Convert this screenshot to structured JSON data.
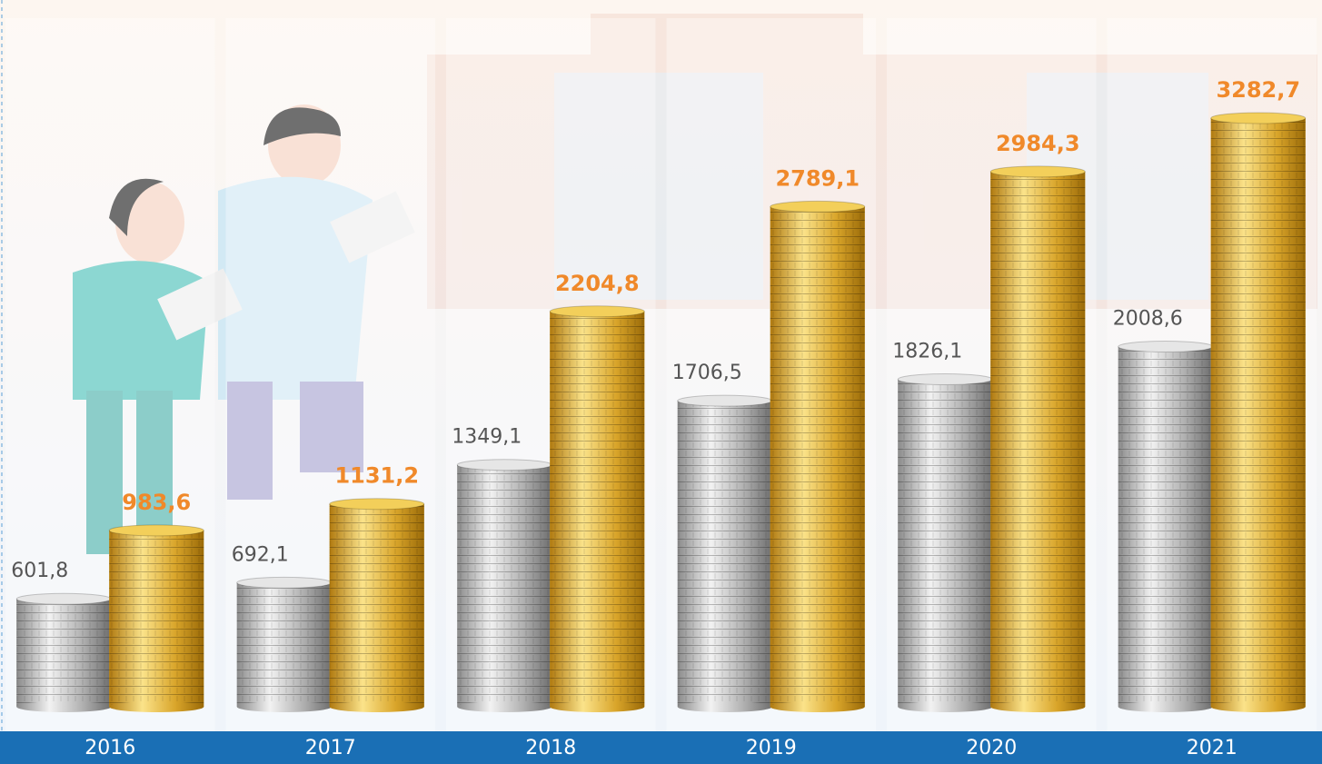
{
  "chart_data": {
    "type": "bar",
    "categories": [
      "2016",
      "2017",
      "2018",
      "2019",
      "2020",
      "2021"
    ],
    "series": [
      {
        "color": "#b8b8b8",
        "values": [
          601.8,
          692.1,
          1349.1,
          1706.5,
          1826.1,
          2008.6
        ],
        "value_labels": [
          "601,8",
          "692,1",
          "1349,1",
          "1706,5",
          "1826,1",
          "2008,6"
        ]
      },
      {
        "color": "#e0b530",
        "values": [
          983.6,
          1131.2,
          2204.8,
          2789.1,
          2984.3,
          3282.7
        ],
        "value_labels": [
          "983,6",
          "1131,2",
          "2204,8",
          "2789,1",
          "2984,3",
          "3282,7"
        ]
      }
    ]
  }
}
